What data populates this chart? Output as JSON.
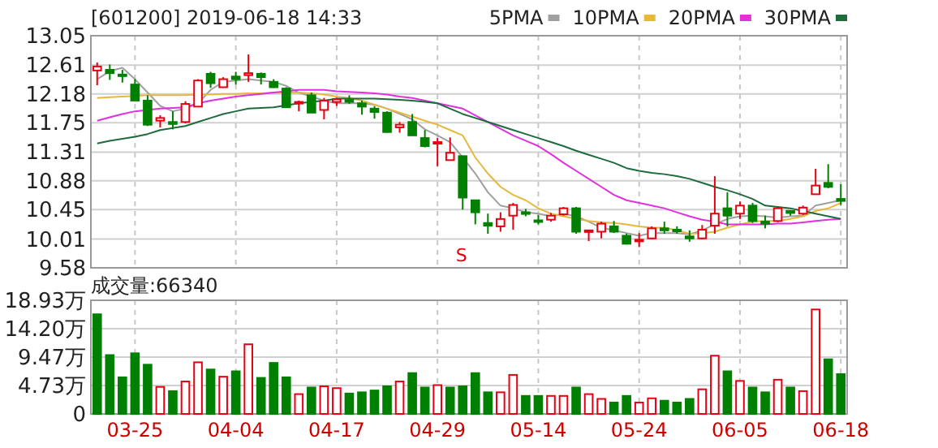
{
  "chart_data": [
    {
      "type": "candlestick",
      "title": "[601200] 2019-06-18 14:33",
      "categories": [
        null,
        null,
        null,
        null,
        null,
        null,
        null,
        null,
        null,
        null,
        null,
        null,
        null,
        null,
        null,
        null,
        null,
        null,
        null,
        null,
        null,
        null,
        null,
        null,
        null,
        null,
        null,
        null,
        null,
        null,
        null,
        null,
        null,
        null,
        null,
        null,
        null,
        null,
        null,
        null,
        null,
        null,
        null,
        null,
        null,
        null,
        null,
        null,
        null,
        null,
        null,
        null,
        null,
        null,
        null,
        null,
        null,
        null,
        null,
        null
      ],
      "ohlc": [
        [
          12.53,
          12.65,
          12.31,
          12.59
        ],
        [
          12.54,
          12.62,
          12.39,
          12.49
        ],
        [
          12.47,
          12.54,
          12.35,
          12.45
        ],
        [
          12.32,
          12.4,
          12.08,
          12.08
        ],
        [
          12.08,
          12.16,
          11.7,
          11.72
        ],
        [
          11.78,
          11.86,
          11.68,
          11.82
        ],
        [
          11.76,
          11.92,
          11.65,
          11.73
        ],
        [
          11.76,
          12.07,
          11.74,
          12.03
        ],
        [
          11.99,
          12.4,
          11.99,
          12.38
        ],
        [
          12.48,
          12.51,
          12.27,
          12.34
        ],
        [
          12.28,
          12.43,
          12.27,
          12.4
        ],
        [
          12.44,
          12.51,
          12.32,
          12.4
        ],
        [
          12.46,
          12.77,
          12.36,
          12.49
        ],
        [
          12.48,
          12.5,
          12.32,
          12.43
        ],
        [
          12.36,
          12.4,
          12.27,
          12.28
        ],
        [
          12.26,
          12.28,
          11.98,
          11.98
        ],
        [
          12.04,
          12.08,
          11.92,
          12.06
        ],
        [
          12.16,
          12.2,
          11.9,
          11.9
        ],
        [
          11.94,
          12.12,
          11.8,
          12.08
        ],
        [
          12.06,
          12.12,
          12.0,
          12.1
        ],
        [
          12.09,
          12.16,
          12.03,
          12.06
        ],
        [
          12.04,
          12.08,
          11.87,
          11.99
        ],
        [
          11.96,
          12.0,
          11.81,
          11.91
        ],
        [
          11.9,
          11.92,
          11.6,
          11.61
        ],
        [
          11.68,
          11.76,
          11.6,
          11.72
        ],
        [
          11.76,
          11.88,
          11.56,
          11.56
        ],
        [
          11.52,
          11.64,
          11.38,
          11.4
        ],
        [
          11.44,
          11.52,
          11.1,
          11.46
        ],
        [
          11.19,
          11.53,
          11.19,
          11.3
        ],
        [
          11.25,
          11.25,
          10.45,
          10.63
        ],
        [
          10.59,
          10.59,
          10.23,
          10.41
        ],
        [
          10.25,
          10.39,
          10.09,
          10.21
        ],
        [
          10.2,
          10.41,
          10.12,
          10.31
        ],
        [
          10.36,
          10.55,
          10.15,
          10.52
        ],
        [
          10.41,
          10.46,
          10.35,
          10.39
        ],
        [
          10.29,
          10.37,
          10.23,
          10.27
        ],
        [
          10.3,
          10.4,
          10.27,
          10.36
        ],
        [
          10.38,
          10.49,
          10.36,
          10.47
        ],
        [
          10.47,
          10.49,
          10.09,
          10.12
        ],
        [
          10.12,
          10.14,
          9.98,
          10.14
        ],
        [
          10.12,
          10.27,
          10.02,
          10.24
        ],
        [
          10.2,
          10.28,
          10.1,
          10.12
        ],
        [
          10.06,
          10.09,
          9.93,
          9.94
        ],
        [
          9.98,
          10.1,
          9.89,
          10.0
        ],
        [
          10.02,
          10.2,
          10.01,
          10.17
        ],
        [
          10.17,
          10.27,
          10.09,
          10.14
        ],
        [
          10.15,
          10.2,
          10.09,
          10.14
        ],
        [
          10.05,
          10.14,
          9.97,
          10.02
        ],
        [
          10.02,
          10.22,
          10.01,
          10.15
        ],
        [
          10.21,
          10.95,
          10.09,
          10.39
        ],
        [
          10.47,
          10.71,
          10.2,
          10.36
        ],
        [
          10.39,
          10.57,
          10.31,
          10.51
        ],
        [
          10.51,
          10.55,
          10.25,
          10.28
        ],
        [
          10.27,
          10.36,
          10.17,
          10.24
        ],
        [
          10.28,
          10.49,
          10.26,
          10.47
        ],
        [
          10.43,
          10.44,
          10.36,
          10.4
        ],
        [
          10.39,
          10.51,
          10.37,
          10.48
        ],
        [
          10.68,
          11.06,
          10.68,
          10.81
        ],
        [
          10.85,
          11.13,
          10.77,
          10.79
        ],
        [
          10.61,
          10.83,
          10.52,
          10.58
        ]
      ],
      "colors": [
        "#e60012",
        "#008000",
        "#008000",
        "#008000",
        "#008000",
        "#e60012",
        "#008000",
        "#e60012",
        "#e60012",
        "#008000",
        "#e60012",
        "#008000",
        "#e60012",
        "#008000",
        "#008000",
        "#008000",
        "#e60012",
        "#008000",
        "#e60012",
        "#e60012",
        "#008000",
        "#008000",
        "#008000",
        "#008000",
        "#e60012",
        "#008000",
        "#008000",
        "#e60012",
        "#e60012",
        "#008000",
        "#008000",
        "#008000",
        "#e60012",
        "#e60012",
        "#008000",
        "#008000",
        "#e60012",
        "#e60012",
        "#008000",
        "#e60012",
        "#e60012",
        "#008000",
        "#008000",
        "#e60012",
        "#e60012",
        "#008000",
        "#008000",
        "#008000",
        "#e60012",
        "#e60012",
        "#008000",
        "#e60012",
        "#008000",
        "#008000",
        "#e60012",
        "#008000",
        "#e60012",
        "#e60012",
        "#008000",
        "#008000"
      ],
      "ylim": [
        9.58,
        13.05
      ],
      "yticks": [
        9.58,
        10.01,
        10.45,
        10.88,
        11.31,
        11.75,
        12.18,
        12.61,
        13.05
      ],
      "grid": true,
      "tick_labels": "y",
      "legend": "top right",
      "annotations": [
        "S"
      ],
      "series": [
        {
          "name": "5PMA",
          "type": "line",
          "color": "#a0a0a0",
          "values": [
            12.4,
            12.52,
            12.57,
            12.4,
            12.2,
            12.0,
            11.92,
            11.96,
            12.04,
            12.24,
            12.36,
            12.38,
            12.4,
            12.38,
            12.36,
            12.3,
            12.2,
            12.14,
            12.08,
            12.04,
            12.04,
            12.04,
            12.02,
            11.96,
            11.88,
            11.8,
            11.65,
            11.56,
            11.46,
            11.23,
            10.99,
            10.71,
            10.51,
            10.47,
            10.41,
            10.39,
            10.35,
            10.39,
            10.35,
            10.27,
            10.18,
            10.14,
            10.1,
            10.06,
            10.1,
            10.1,
            10.1,
            10.08,
            10.14,
            10.23,
            10.31,
            10.35,
            10.36,
            10.35,
            10.33,
            10.35,
            10.36,
            10.51,
            10.55,
            10.59
          ]
        },
        {
          "name": "10PMA",
          "type": "line",
          "color": "#e8b83c",
          "values": [
            12.12,
            12.13,
            12.14,
            12.15,
            12.16,
            12.16,
            12.16,
            12.16,
            12.17,
            12.17,
            12.18,
            12.18,
            12.19,
            12.19,
            12.2,
            12.2,
            12.2,
            12.19,
            12.17,
            12.14,
            12.12,
            12.08,
            12.02,
            11.96,
            11.9,
            11.84,
            11.78,
            11.72,
            11.64,
            11.56,
            11.23,
            10.99,
            10.79,
            10.67,
            10.59,
            10.47,
            10.39,
            10.35,
            10.31,
            10.28,
            10.26,
            10.25,
            10.23,
            10.2,
            10.18,
            10.18,
            10.14,
            10.09,
            10.1,
            10.12,
            10.18,
            10.23,
            10.27,
            10.28,
            10.28,
            10.31,
            10.35,
            10.43,
            10.47,
            10.55
          ]
        },
        {
          "name": "20PMA",
          "type": "line",
          "color": "#e030e0",
          "values": [
            11.78,
            11.83,
            11.88,
            11.92,
            11.94,
            11.96,
            11.97,
            11.98,
            12.04,
            12.08,
            12.11,
            12.14,
            12.16,
            12.18,
            12.2,
            12.22,
            12.24,
            12.24,
            12.24,
            12.22,
            12.21,
            12.2,
            12.19,
            12.17,
            12.14,
            12.12,
            12.08,
            12.04,
            12.0,
            11.96,
            11.86,
            11.76,
            11.66,
            11.56,
            11.48,
            11.4,
            11.28,
            11.15,
            11.03,
            10.91,
            10.79,
            10.67,
            10.59,
            10.55,
            10.51,
            10.47,
            10.41,
            10.35,
            10.3,
            10.27,
            10.23,
            10.23,
            10.23,
            10.23,
            10.24,
            10.24,
            10.26,
            10.28,
            10.3,
            10.31
          ]
        },
        {
          "name": "30PMA",
          "type": "line",
          "color": "#1e6b3c",
          "values": [
            11.44,
            11.48,
            11.51,
            11.54,
            11.58,
            11.64,
            11.67,
            11.7,
            11.76,
            11.82,
            11.88,
            11.92,
            11.96,
            11.97,
            11.98,
            12.01,
            12.04,
            12.06,
            12.08,
            12.11,
            12.11,
            12.11,
            12.11,
            12.1,
            12.09,
            12.08,
            12.06,
            12.04,
            11.96,
            11.88,
            11.82,
            11.76,
            11.7,
            11.64,
            11.58,
            11.52,
            11.46,
            11.4,
            11.33,
            11.27,
            11.21,
            11.15,
            11.07,
            11.03,
            11.0,
            10.98,
            10.95,
            10.91,
            10.85,
            10.79,
            10.74,
            10.68,
            10.61,
            10.51,
            10.49,
            10.47,
            10.43,
            10.39,
            10.35,
            10.31
          ]
        }
      ]
    },
    {
      "type": "bar",
      "title": "成交量:66340",
      "categories": [
        null,
        null,
        null,
        "03-25",
        null,
        null,
        null,
        null,
        null,
        null,
        null,
        "04-04",
        null,
        null,
        null,
        null,
        null,
        null,
        null,
        "04-17",
        null,
        null,
        null,
        null,
        null,
        null,
        null,
        "04-29",
        null,
        null,
        null,
        null,
        null,
        null,
        null,
        "05-14",
        null,
        null,
        null,
        null,
        null,
        null,
        null,
        "05-24",
        null,
        null,
        null,
        null,
        null,
        null,
        null,
        "06-05",
        null,
        null,
        null,
        null,
        null,
        null,
        null,
        "06-18"
      ],
      "values": [
        16.6,
        9.8,
        6.1,
        10.1,
        8.2,
        4.5,
        3.8,
        5.4,
        8.6,
        7.4,
        6.2,
        7.1,
        11.6,
        6.0,
        8.5,
        6.1,
        3.3,
        4.4,
        4.6,
        4.3,
        3.4,
        3.6,
        3.9,
        4.6,
        5.4,
        6.8,
        4.4,
        4.8,
        4.4,
        4.6,
        6.8,
        3.6,
        3.6,
        6.5,
        3.0,
        3.0,
        3.0,
        3.0,
        4.4,
        3.3,
        2.5,
        1.9,
        3.0,
        1.9,
        2.6,
        2.2,
        1.9,
        2.5,
        4.1,
        9.7,
        7.1,
        5.5,
        4.4,
        3.6,
        5.7,
        4.4,
        3.8,
        17.4,
        9.1,
        6.634
      ],
      "colors": [
        "#008000",
        "#008000",
        "#008000",
        "#008000",
        "#008000",
        "#e60012",
        "#008000",
        "#e60012",
        "#e60012",
        "#008000",
        "#e60012",
        "#008000",
        "#e60012",
        "#008000",
        "#008000",
        "#008000",
        "#e60012",
        "#008000",
        "#e60012",
        "#e60012",
        "#008000",
        "#008000",
        "#008000",
        "#008000",
        "#e60012",
        "#008000",
        "#008000",
        "#e60012",
        "#008000",
        "#008000",
        "#008000",
        "#008000",
        "#e60012",
        "#e60012",
        "#008000",
        "#008000",
        "#e60012",
        "#e60012",
        "#008000",
        "#e60012",
        "#e60012",
        "#008000",
        "#008000",
        "#e60012",
        "#e60012",
        "#008000",
        "#008000",
        "#008000",
        "#e60012",
        "#e60012",
        "#008000",
        "#e60012",
        "#008000",
        "#008000",
        "#e60012",
        "#008000",
        "#e60012",
        "#e60012",
        "#008000",
        "#008000"
      ],
      "ylim": [
        0,
        18.93
      ],
      "yticks": [
        0,
        {
          "value": 4.73,
          "label": "4.73万"
        },
        {
          "value": 9.47,
          "label": "9.47万"
        },
        {
          "value": 14.2,
          "label": "14.20万"
        },
        {
          "value": 18.93,
          "label": "18.93万"
        }
      ],
      "grid": true
    }
  ]
}
